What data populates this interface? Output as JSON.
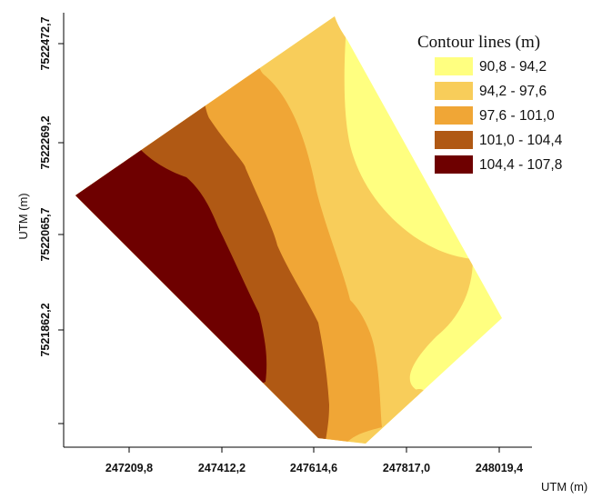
{
  "map": {
    "x_axis": {
      "title": "UTM (m)",
      "ticks": [
        "247209,8",
        "247412,2",
        "247614,6",
        "247817,0",
        "248019,4"
      ]
    },
    "y_axis": {
      "title": "UTM (m)",
      "ticks": [
        "7522472,7",
        "7522269,2",
        "7522065,7",
        "7521862,2",
        ""
      ]
    },
    "legend": {
      "title": "Contour lines (m)",
      "entries": [
        {
          "label": "90,8 - 94,2",
          "color": "#ffff80"
        },
        {
          "label": "94,2 - 97,6",
          "color": "#f8cd5a"
        },
        {
          "label": "97,6 - 101,0",
          "color": "#f0a636"
        },
        {
          "label": "101,0 - 104,4",
          "color": "#b05914"
        },
        {
          "label": "104,4 - 107,8",
          "color": "#6e0000"
        }
      ]
    }
  }
}
